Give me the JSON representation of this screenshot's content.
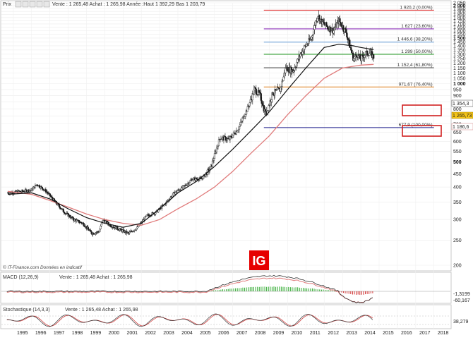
{
  "header": {
    "price_label": "Prix",
    "quote_line": "Vente : 1 265,48 Achat : 1 265,98 Année :Haut 1 392,29 Bas 1 203,79"
  },
  "watermark": "© IT-Finance.com Données en indicatif",
  "logo_text": "IG",
  "macd_panel": {
    "title": "MACD (12,26,9)",
    "quote": "Vente : 1 265,48 Achat : 1 265,98",
    "values": [
      "-1,3199",
      "-60,167"
    ]
  },
  "stoch_panel": {
    "title": "Stochastique (14,3,3)",
    "quote": "Vente : 1 265,48 Achat : 1 265,98",
    "value": "38,279"
  },
  "price_tags": {
    "ma_short": "1 354,3",
    "last": "1 265,73",
    "ma_long": "1 186,6"
  },
  "chart_data": {
    "type": "candlestick",
    "y_scale": "log",
    "y_range": [
      200,
      2050
    ],
    "y_ticks": [
      "2 050",
      "2 000",
      "1 950",
      "1 900",
      "1 850",
      "1 800",
      "1 750",
      "1 700",
      "1 650",
      "1 600",
      "1 550",
      "1 500",
      "1 450",
      "1 400",
      "1 350",
      "1 300",
      "1 250",
      "1 200",
      "1 150",
      "1 100",
      "1 050",
      "1 000",
      "950",
      "900",
      "850",
      "800",
      "750",
      "700",
      "650",
      "600",
      "550",
      "500",
      "450",
      "400",
      "350",
      "300",
      "250",
      "200"
    ],
    "x_ticks": [
      "1995",
      "1996",
      "1997",
      "1998",
      "1999",
      "2000",
      "2001",
      "2002",
      "2003",
      "2004",
      "2005",
      "2006",
      "2007",
      "2008",
      "2009",
      "2010",
      "2011",
      "2012",
      "2013",
      "2014",
      "2015",
      "2016",
      "2017",
      "2018"
    ],
    "fib_levels": [
      {
        "label": "1 920,2 (0,00%)",
        "value": 1920.2,
        "color": "#e03030"
      },
      {
        "label": "1 627 (23,60%)",
        "value": 1627,
        "color": "#8a2fb8"
      },
      {
        "label": "1 446,6 (38,20%)",
        "value": 1446.6,
        "color": "#6fa0d8"
      },
      {
        "label": "1 299 (50,00%)",
        "value": 1299,
        "color": "#2a9a2a"
      },
      {
        "label": "1 152,4 (61,80%)",
        "value": 1152.4,
        "color": "#555555"
      },
      {
        "label": "971,67 (76,40%)",
        "value": 971.67,
        "color": "#e08a30"
      },
      {
        "label": "677,9 (100,00%)",
        "value": 677.9,
        "color": "#1a1a8a"
      }
    ],
    "highlighted_levels": [
      "1 299 (50,00%)",
      "1 152,4 (61,80%)"
    ],
    "price": [
      [
        1994.7,
        380
      ],
      [
        1995.5,
        385
      ],
      [
        1996.0,
        390
      ],
      [
        1996.3,
        410
      ],
      [
        1996.8,
        385
      ],
      [
        1997.3,
        350
      ],
      [
        1997.8,
        320
      ],
      [
        1998.3,
        300
      ],
      [
        1998.8,
        290
      ],
      [
        1999.3,
        265
      ],
      [
        1999.7,
        270
      ],
      [
        1999.9,
        300
      ],
      [
        2000.3,
        285
      ],
      [
        2000.8,
        275
      ],
      [
        2001.3,
        265
      ],
      [
        2001.8,
        280
      ],
      [
        2002.3,
        310
      ],
      [
        2002.8,
        320
      ],
      [
        2003.3,
        345
      ],
      [
        2003.8,
        380
      ],
      [
        2004.3,
        400
      ],
      [
        2004.8,
        430
      ],
      [
        2005.3,
        430
      ],
      [
        2005.8,
        475
      ],
      [
        2006.3,
        620
      ],
      [
        2006.8,
        610
      ],
      [
        2007.3,
        670
      ],
      [
        2007.8,
        800
      ],
      [
        2008.2,
        950
      ],
      [
        2008.5,
        900
      ],
      [
        2008.8,
        760
      ],
      [
        2009.2,
        920
      ],
      [
        2009.6,
        950
      ],
      [
        2009.9,
        1150
      ],
      [
        2010.3,
        1120
      ],
      [
        2010.7,
        1300
      ],
      [
        2011.0,
        1400
      ],
      [
        2011.3,
        1500
      ],
      [
        2011.65,
        1850
      ],
      [
        2011.8,
        1750
      ],
      [
        2012.2,
        1650
      ],
      [
        2012.5,
        1600
      ],
      [
        2012.8,
        1750
      ],
      [
        2013.2,
        1580
      ],
      [
        2013.4,
        1400
      ],
      [
        2013.6,
        1250
      ],
      [
        2013.8,
        1300
      ],
      [
        2014.0,
        1240
      ],
      [
        2014.2,
        1300
      ],
      [
        2014.5,
        1320
      ],
      [
        2014.7,
        1266
      ]
    ],
    "ma_short": [
      [
        1994.7,
        375
      ],
      [
        1996.0,
        380
      ],
      [
        1997.0,
        360
      ],
      [
        1998.0,
        330
      ],
      [
        1999.0,
        305
      ],
      [
        2000.0,
        290
      ],
      [
        2001.0,
        280
      ],
      [
        2002.0,
        290
      ],
      [
        2003.0,
        330
      ],
      [
        2004.0,
        380
      ],
      [
        2005.0,
        420
      ],
      [
        2006.0,
        480
      ],
      [
        2007.0,
        560
      ],
      [
        2008.0,
        660
      ],
      [
        2009.0,
        780
      ],
      [
        2010.0,
        950
      ],
      [
        2011.0,
        1150
      ],
      [
        2012.0,
        1380
      ],
      [
        2012.8,
        1420
      ],
      [
        2013.2,
        1410
      ],
      [
        2013.6,
        1400
      ],
      [
        2014.0,
        1380
      ],
      [
        2014.7,
        1354
      ]
    ],
    "ma_long": [
      [
        1994.7,
        385
      ],
      [
        1996.0,
        375
      ],
      [
        1997.0,
        355
      ],
      [
        1998.0,
        335
      ],
      [
        1999.0,
        315
      ],
      [
        2000.0,
        300
      ],
      [
        2001.0,
        290
      ],
      [
        2002.0,
        285
      ],
      [
        2003.0,
        300
      ],
      [
        2004.0,
        330
      ],
      [
        2005.0,
        360
      ],
      [
        2006.0,
        400
      ],
      [
        2007.0,
        460
      ],
      [
        2008.0,
        540
      ],
      [
        2009.0,
        630
      ],
      [
        2010.0,
        760
      ],
      [
        2011.0,
        900
      ],
      [
        2012.0,
        1050
      ],
      [
        2013.0,
        1150
      ],
      [
        2014.0,
        1180
      ],
      [
        2014.7,
        1187
      ]
    ]
  }
}
